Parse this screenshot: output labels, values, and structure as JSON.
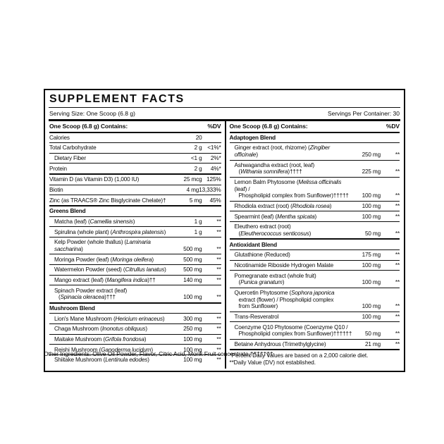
{
  "label": {
    "title": "SUPPLEMENT FACTS",
    "serving_size": "Serving Size: One Scoop (6.8 g)",
    "servings_per_container": "Servings Per Container: 30",
    "other_ingredients": "Other Ingredients: Olive Oil Powder, Flavor, Citric Acid, Monk Fruit concentrate.†††††††",
    "text_color": "#0c0c0c",
    "background_color": "#ffffff"
  },
  "columns": [
    {
      "header": "One Scoop (6.8 g) Contains:",
      "dv_header": "%DV",
      "rows": [
        {
          "type": "item",
          "name": "Calories",
          "amount": "20",
          "dv": "",
          "top": "none"
        },
        {
          "type": "item",
          "name": "Total Carbohydrate",
          "amount": "2 g",
          "dv": "<1%*"
        },
        {
          "type": "item",
          "name": "Dietary Fiber",
          "amount": "<1 g",
          "dv": "2%*",
          "indent": true
        },
        {
          "type": "item",
          "name": "Protein",
          "amount": "2 g",
          "dv": "4%*"
        },
        {
          "type": "item",
          "name": "Vitamin D (as Vitamin D3) (1,000 IU)",
          "amount": "25 mcg",
          "dv": "125%",
          "top": "thick"
        },
        {
          "type": "item",
          "name": "Biotin",
          "amount": "4 mg",
          "dv": "13,333%"
        },
        {
          "type": "item",
          "name": "Zinc (as TRAACS® Zinc Bisglycinate Chelate)†",
          "amount": "5 mg",
          "dv": "45%"
        },
        {
          "type": "section",
          "name": "Greens Blend",
          "top": "thick"
        },
        {
          "type": "item",
          "name": "Matcha (leaf) (*Camellia sinensis*)",
          "amount": "1 g",
          "dv": "**",
          "indent": true
        },
        {
          "type": "item",
          "name": "Spirulina (whole plant) (*Anthrospira platensis*)",
          "amount": "1 g",
          "dv": "**",
          "indent": true
        },
        {
          "type": "item",
          "name": "Kelp Powder (whole thallus) (*Laminaria saccharina*)",
          "amount": "500 mg",
          "dv": "**",
          "indent": true
        },
        {
          "type": "item",
          "name": "Moringa Powder (leaf) (*Moringa oleifera*)",
          "amount": "500 mg",
          "dv": "**",
          "indent": true
        },
        {
          "type": "item",
          "name": "Watermelon Powder (seed) (*Citrullus lanatus*)",
          "amount": "500 mg",
          "dv": "**",
          "indent": true
        },
        {
          "type": "item",
          "name": "Mango extract (leaf) (*Mangifera indica*)††",
          "amount": "140 mg",
          "dv": "**",
          "indent": true
        },
        {
          "type": "item",
          "name": "Spinach Powder extract (leaf)\n(*Spinacia oleracea*)†††",
          "amount": "100 mg",
          "dv": "**",
          "indent": true
        },
        {
          "type": "section",
          "name": "Mushroom Blend",
          "top": "thick"
        },
        {
          "type": "item",
          "name": "Lion's Mane Mushroom (*Hericium erinaceus*)",
          "amount": "300 mg",
          "dv": "**",
          "indent": true
        },
        {
          "type": "item",
          "name": "Chaga Mushroom (*Inonotus obliquus*)",
          "amount": "250 mg",
          "dv": "**",
          "indent": true
        },
        {
          "type": "item",
          "name": "Maitake Mushroom (*Grifola frondosa*)",
          "amount": "100 mg",
          "dv": "**",
          "indent": true
        },
        {
          "type": "item",
          "name": "Reishi Mushroom (*Ganoderma lucidum*)",
          "amount": "100 mg",
          "dv": "**",
          "indent": true
        },
        {
          "type": "item",
          "name": "Shiitake Mushroom (*Lentinula edodes*)",
          "amount": "100 mg",
          "dv": "**",
          "indent": true
        }
      ]
    },
    {
      "header": "One Scoop (6.8 g) Contains:",
      "dv_header": "%DV",
      "rows": [
        {
          "type": "section",
          "name": "Adaptogen Blend",
          "top": "none"
        },
        {
          "type": "item",
          "name": "Ginger extract (root, rhizome) (*Zingiber officinale*)",
          "amount": "250 mg",
          "dv": "**",
          "indent": true
        },
        {
          "type": "item",
          "name": "Ashwagandha extract (root, leaf)\n(*Withania somnifera*)††††",
          "amount": "225 mg",
          "dv": "**",
          "indent": true
        },
        {
          "type": "item",
          "name": "Lemon Balm Phytosome (*Melissa officinalis* (leaf) /\nPhospholipid complex from Sunflower)†††††",
          "amount": "100 mg",
          "dv": "**",
          "indent": true
        },
        {
          "type": "item",
          "name": "Rhodiola extract (root) (*Rhodiola rosea*)",
          "amount": "100 mg",
          "dv": "**",
          "indent": true
        },
        {
          "type": "item",
          "name": "Spearmint (leaf) (*Mentha spicata*)",
          "amount": "100 mg",
          "dv": "**",
          "indent": true
        },
        {
          "type": "item",
          "name": "Eleuthero extract (root)\n(*Eleutherococcus senticosus*)",
          "amount": "50 mg",
          "dv": "**",
          "indent": true
        },
        {
          "type": "section",
          "name": "Antioxidant Blend",
          "top": "thick"
        },
        {
          "type": "item",
          "name": "Glutathione (Reduced)",
          "amount": "175 mg",
          "dv": "**",
          "indent": true
        },
        {
          "type": "item",
          "name": "Nicotinamide Riboside Hydrogen Malate",
          "amount": "100 mg",
          "dv": "**",
          "indent": true
        },
        {
          "type": "item",
          "name": "Pomegranate extract (whole fruit)\n(*Punica granatum*)",
          "amount": "100 mg",
          "dv": "**",
          "indent": true
        },
        {
          "type": "item",
          "name": "Quercetin Phytosome (*Sophora japonica*\nextract (flower) / Phospholipid complex\nfrom Sunflower)",
          "amount": "100 mg",
          "dv": "**",
          "indent": true
        },
        {
          "type": "item",
          "name": "Trans-Resveratrol",
          "amount": "100 mg",
          "dv": "**",
          "indent": true
        },
        {
          "type": "item",
          "name": "Coenzyme Q10 Phytosome (Coenzyme Q10 /\nPhospholipid complex from Sunflower)††††††",
          "amount": "50 mg",
          "dv": "**",
          "indent": true
        },
        {
          "type": "item",
          "name": "Betaine Anhydrous (Trimethylglycine)",
          "amount": "21 mg",
          "dv": "**",
          "indent": true
        },
        {
          "type": "note",
          "top": "thick",
          "lines": [
            "*Percent Daily Values are based on a 2,000 calorie diet.",
            "**Daily Value (DV) not established."
          ]
        }
      ]
    }
  ]
}
